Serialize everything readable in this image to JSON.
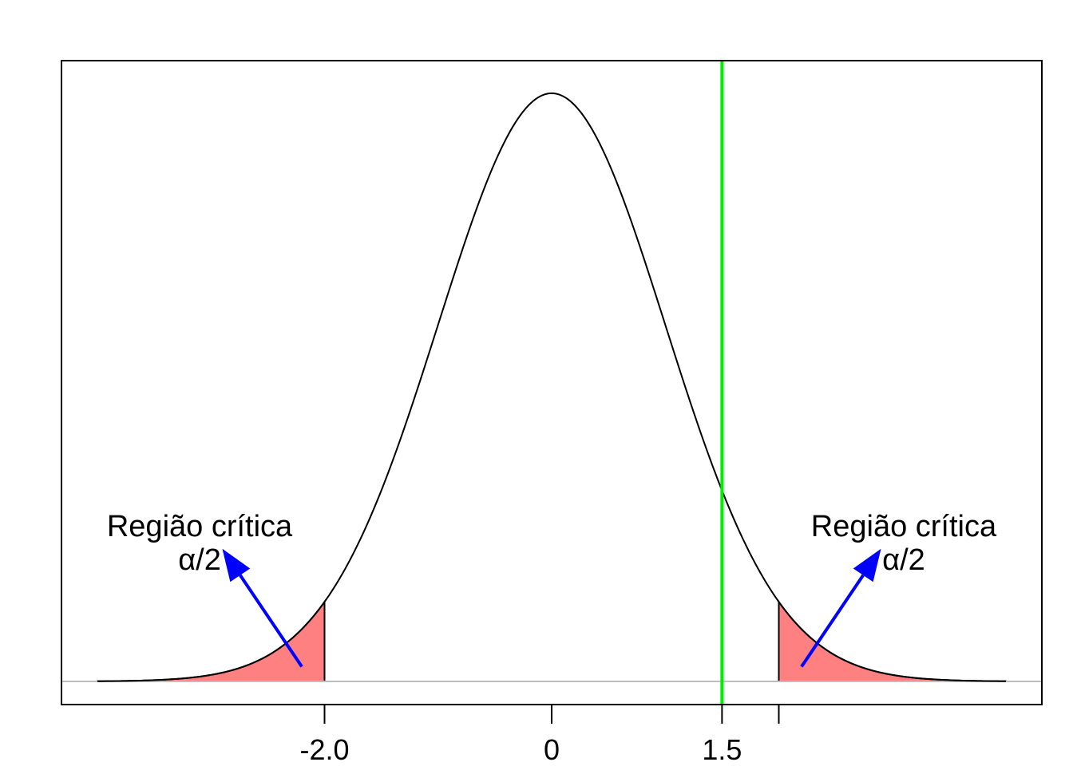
{
  "chart_data": {
    "type": "area",
    "title": "",
    "xlabel": "",
    "ylabel": "",
    "distribution": "standard normal density",
    "x_range": [
      -4,
      4
    ],
    "y_range": [
      0,
      0.42
    ],
    "critical_value": 2.0,
    "critical_regions": [
      {
        "from": -4,
        "to": -2.0
      },
      {
        "from": 2.0,
        "to": 4
      }
    ],
    "observed_value": 1.5,
    "x_ticks": [
      {
        "value": -2.0,
        "label": "-2.0"
      },
      {
        "value": 0,
        "label": "0"
      },
      {
        "value": 1.5,
        "label": "1.5"
      },
      {
        "value": 2.0,
        "label": ""
      }
    ],
    "annotations": [
      {
        "line1": "Região crítica",
        "line2": "α/2",
        "text_x": -3.1,
        "arrow_from": [
          -2.2,
          0.01
        ],
        "arrow_to": [
          -2.9,
          0.09
        ]
      },
      {
        "line1": "Região crítica",
        "line2": "α/2",
        "text_x": 3.1,
        "arrow_from": [
          2.2,
          0.01
        ],
        "arrow_to": [
          2.9,
          0.09
        ]
      }
    ],
    "grid": false,
    "legend": "none",
    "colors": {
      "curve": "#000000",
      "critical_fill": "#FF8080",
      "observed_line": "#00EE00",
      "arrow": "#0000FF",
      "baseline": "#BEBEBE"
    }
  }
}
